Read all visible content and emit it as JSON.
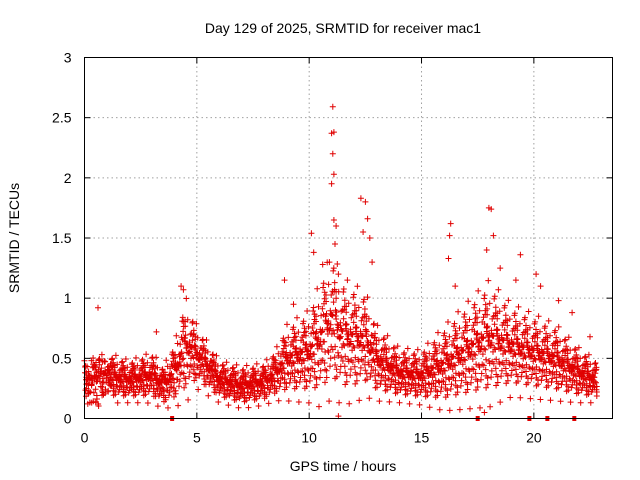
{
  "chart_data": {
    "type": "scatter",
    "title": "Day 129 of 2025, SRMTID for receiver mac1",
    "xlabel": "GPS time / hours",
    "ylabel": "SRMTID / TECUs",
    "xlim": [
      0,
      23.5
    ],
    "ylim": [
      0,
      3
    ],
    "xticks": [
      0,
      5,
      10,
      15,
      20
    ],
    "xtick_labels": [
      "0",
      "5",
      "10",
      "15",
      "20"
    ],
    "yticks": [
      0,
      0.5,
      1,
      1.5,
      2,
      2.5,
      3
    ],
    "ytick_labels": [
      "0",
      "0.5",
      "1",
      "1.5",
      "2",
      "2.5",
      "3"
    ],
    "grid": true,
    "marker": "+",
    "color": "#e00000",
    "baseline_markers_x": [
      3.9,
      17.5,
      19.8,
      20.6,
      21.8
    ],
    "envelope": {
      "description": "Approximate running level and spread of SRMTID values vs time (hours)",
      "x": [
        0,
        1,
        2,
        3,
        3.5,
        4,
        4.5,
        5,
        6,
        7,
        8,
        8.5,
        9,
        10,
        10.5,
        11,
        11.5,
        12,
        12.5,
        13,
        14,
        15,
        16,
        17,
        18,
        19,
        20,
        21,
        22,
        22.8
      ],
      "median": [
        0.33,
        0.33,
        0.3,
        0.33,
        0.25,
        0.35,
        0.55,
        0.5,
        0.3,
        0.25,
        0.28,
        0.35,
        0.45,
        0.5,
        0.6,
        0.75,
        0.62,
        0.6,
        0.6,
        0.45,
        0.35,
        0.33,
        0.4,
        0.5,
        0.6,
        0.55,
        0.5,
        0.45,
        0.35,
        0.3
      ],
      "spread": [
        0.12,
        0.12,
        0.1,
        0.12,
        0.1,
        0.15,
        0.25,
        0.15,
        0.1,
        0.1,
        0.1,
        0.12,
        0.18,
        0.22,
        0.3,
        0.35,
        0.3,
        0.28,
        0.25,
        0.18,
        0.13,
        0.13,
        0.2,
        0.25,
        0.3,
        0.22,
        0.2,
        0.18,
        0.13,
        0.1
      ]
    },
    "peaks": [
      {
        "x": 0.6,
        "y": 0.92
      },
      {
        "x": 3.2,
        "y": 0.72
      },
      {
        "x": 4.3,
        "y": 1.1
      },
      {
        "x": 4.4,
        "y": 1.07
      },
      {
        "x": 8.9,
        "y": 1.15
      },
      {
        "x": 9.3,
        "y": 0.95
      },
      {
        "x": 10.1,
        "y": 1.54
      },
      {
        "x": 10.2,
        "y": 1.38
      },
      {
        "x": 10.6,
        "y": 1.28
      },
      {
        "x": 10.9,
        "y": 1.3
      },
      {
        "x": 11.05,
        "y": 2.59
      },
      {
        "x": 11.1,
        "y": 2.38
      },
      {
        "x": 11.0,
        "y": 2.37
      },
      {
        "x": 11.05,
        "y": 2.2
      },
      {
        "x": 11.1,
        "y": 2.03
      },
      {
        "x": 11.0,
        "y": 1.95
      },
      {
        "x": 11.1,
        "y": 1.65
      },
      {
        "x": 11.2,
        "y": 1.6
      },
      {
        "x": 11.15,
        "y": 1.45
      },
      {
        "x": 11.3,
        "y": 1.2
      },
      {
        "x": 12.3,
        "y": 1.83
      },
      {
        "x": 12.5,
        "y": 1.8
      },
      {
        "x": 12.6,
        "y": 1.66
      },
      {
        "x": 12.4,
        "y": 1.55
      },
      {
        "x": 12.7,
        "y": 1.5
      },
      {
        "x": 12.8,
        "y": 1.3
      },
      {
        "x": 16.3,
        "y": 1.62
      },
      {
        "x": 16.25,
        "y": 1.52
      },
      {
        "x": 16.2,
        "y": 1.33
      },
      {
        "x": 16.5,
        "y": 1.1
      },
      {
        "x": 18.0,
        "y": 1.75
      },
      {
        "x": 18.1,
        "y": 1.74
      },
      {
        "x": 18.2,
        "y": 1.52
      },
      {
        "x": 17.9,
        "y": 1.4
      },
      {
        "x": 18.5,
        "y": 1.25
      },
      {
        "x": 19.4,
        "y": 1.36
      },
      {
        "x": 19.2,
        "y": 1.15
      },
      {
        "x": 20.1,
        "y": 1.2
      },
      {
        "x": 20.3,
        "y": 1.1
      },
      {
        "x": 21.1,
        "y": 0.98
      },
      {
        "x": 21.7,
        "y": 0.88
      },
      {
        "x": 22.5,
        "y": 0.68
      },
      {
        "x": 11.3,
        "y": 0.02
      },
      {
        "x": 17.8,
        "y": 0.05
      }
    ]
  }
}
